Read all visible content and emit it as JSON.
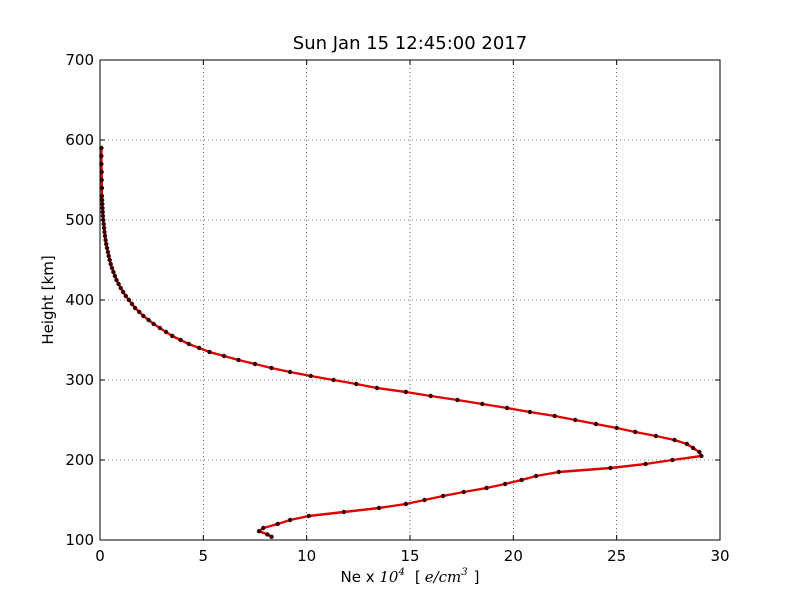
{
  "chart_data": {
    "type": "line",
    "title": "Sun Jan 15 12:45:00 2017",
    "xlabel": {
      "prefix": "Ne x ",
      "power_base": "10",
      "power_exp": "4",
      "units_open": "[",
      "units_core": "e/cm",
      "units_exp": "3",
      "units_close": "]"
    },
    "ylabel": "Height [km]",
    "xlim": [
      0,
      30
    ],
    "ylim": [
      100,
      700
    ],
    "xticks": [
      0,
      5,
      10,
      15,
      20,
      25,
      30
    ],
    "yticks": [
      100,
      200,
      300,
      400,
      500,
      600,
      700
    ],
    "grid": true,
    "line_color": "#e00000",
    "marker_color": "#3a0000",
    "series": [
      {
        "x": [
          8.3,
          8.1,
          7.7,
          7.9,
          8.6,
          9.2,
          10.1,
          11.8,
          13.5,
          14.8,
          15.7,
          16.6,
          17.6,
          18.7,
          19.6,
          20.4,
          21.1,
          22.2,
          24.7,
          26.4,
          27.7,
          29.1,
          29.0,
          28.7,
          28.4,
          27.8,
          26.9,
          25.9,
          25.0,
          24.0,
          23.0,
          22.0,
          20.8,
          19.7,
          18.5,
          17.3,
          16.0,
          14.8,
          13.4,
          12.4,
          11.3,
          10.2,
          9.2,
          8.3,
          7.5,
          6.7,
          6.0,
          5.3,
          4.8,
          4.3,
          3.9,
          3.5,
          3.2,
          2.9,
          2.6,
          2.35,
          2.1,
          1.9,
          1.7,
          1.55,
          1.4,
          1.25,
          1.12,
          1.0,
          0.9,
          0.8,
          0.72,
          0.65,
          0.58,
          0.52,
          0.47,
          0.42,
          0.38,
          0.34,
          0.3,
          0.27,
          0.24,
          0.22,
          0.2,
          0.18,
          0.16,
          0.14,
          0.13,
          0.12,
          0.11,
          0.1,
          0.09,
          0.09,
          0.08,
          0.08,
          0.07,
          0.07,
          0.07
        ],
        "y": [
          104,
          107,
          111,
          115,
          120,
          125,
          130,
          135,
          140,
          145,
          150,
          155,
          160,
          165,
          170,
          175,
          180,
          185,
          190,
          195,
          200,
          205,
          210,
          215,
          220,
          225,
          230,
          235,
          240,
          245,
          250,
          255,
          260,
          265,
          270,
          275,
          280,
          285,
          290,
          295,
          300,
          305,
          310,
          315,
          320,
          325,
          330,
          335,
          340,
          345,
          350,
          355,
          360,
          365,
          370,
          375,
          380,
          385,
          390,
          395,
          400,
          405,
          410,
          415,
          420,
          425,
          430,
          435,
          440,
          445,
          450,
          455,
          460,
          465,
          470,
          475,
          480,
          485,
          490,
          495,
          500,
          505,
          510,
          515,
          520,
          525,
          530,
          540,
          550,
          560,
          570,
          580,
          590
        ]
      }
    ]
  }
}
